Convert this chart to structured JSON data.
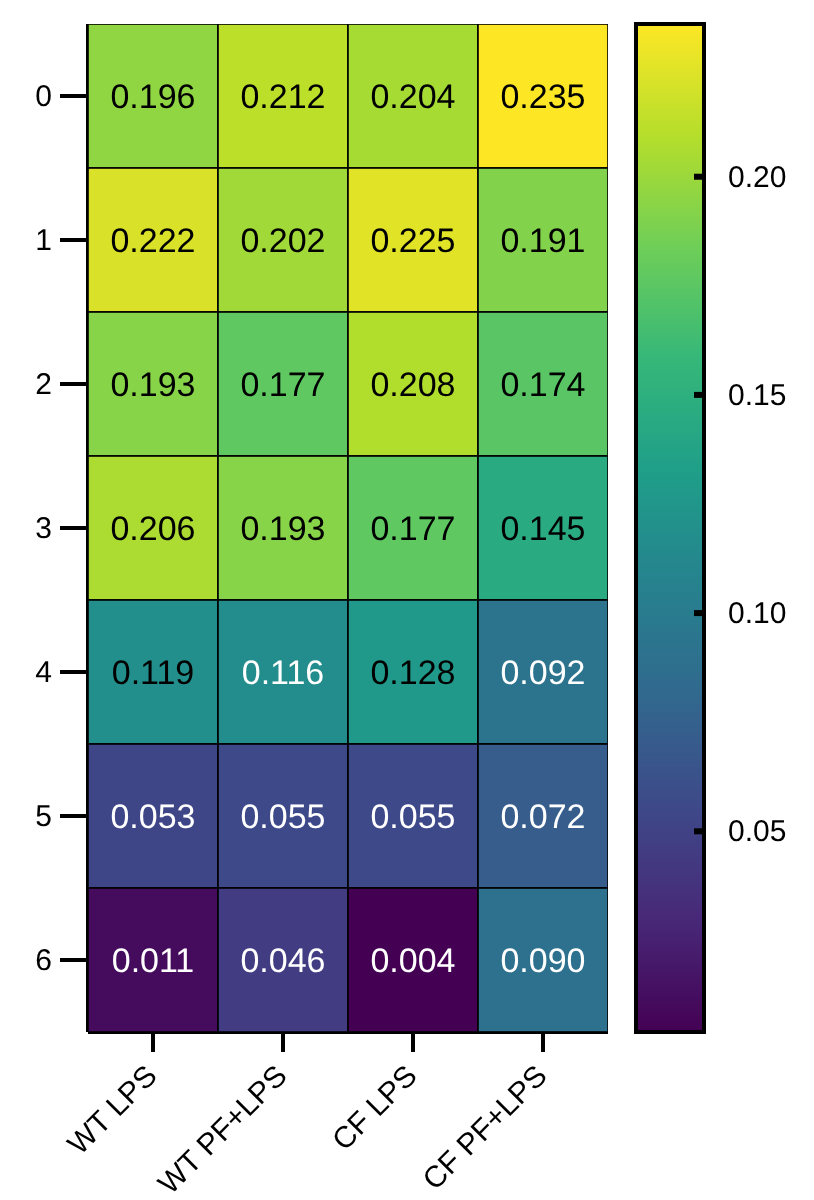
{
  "chart_data": {
    "type": "heatmap",
    "categories": [
      "WT LPS",
      "WT PF+LPS",
      "CF LPS",
      "CF PF+LPS"
    ],
    "y_categories": [
      "0",
      "1",
      "2",
      "3",
      "4",
      "5",
      "6"
    ],
    "cells": [
      [
        0.196,
        0.212,
        0.204,
        0.235
      ],
      [
        0.222,
        0.202,
        0.225,
        0.191
      ],
      [
        0.193,
        0.177,
        0.208,
        0.174
      ],
      [
        0.206,
        0.193,
        0.177,
        0.145
      ],
      [
        0.119,
        0.116,
        0.128,
        0.092
      ],
      [
        0.053,
        0.055,
        0.055,
        0.072
      ],
      [
        0.011,
        0.046,
        0.004,
        0.09
      ]
    ],
    "data_labels": true,
    "clim": [
      0.004,
      0.235
    ],
    "cell_labels": [
      [
        "0.196",
        "0.212",
        "0.204",
        "0.235"
      ],
      [
        "0.222",
        "0.202",
        "0.225",
        "0.191"
      ],
      [
        "0.193",
        "0.177",
        "0.208",
        "0.174"
      ],
      [
        "0.206",
        "0.193",
        "0.177",
        "0.145"
      ],
      [
        "0.119",
        "0.116",
        "0.128",
        "0.092"
      ],
      [
        "0.053",
        "0.055",
        "0.055",
        "0.072"
      ],
      [
        "0.011",
        "0.046",
        "0.004",
        "0.090"
      ]
    ],
    "cticks": [
      0.05,
      {
        "value": 0.1,
        "label": "0.10"
      },
      0.15,
      {
        "value": 0.2,
        "label": "0.20"
      }
    ]
  }
}
